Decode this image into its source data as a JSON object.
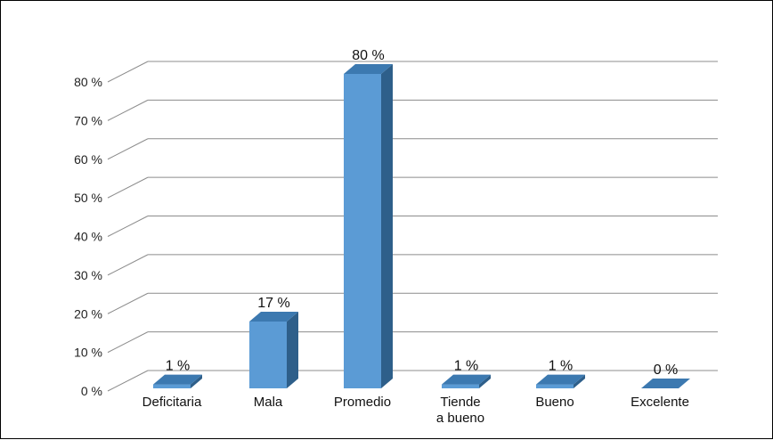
{
  "chart_data": {
    "type": "bar",
    "style": "3d-column",
    "categories": [
      [
        "Deficitaria"
      ],
      [
        "Mala"
      ],
      [
        "Promedio"
      ],
      [
        "Tiende",
        "a bueno"
      ],
      [
        "Bueno"
      ],
      [
        "Excelente"
      ]
    ],
    "values": [
      1,
      17,
      80,
      1,
      1,
      0
    ],
    "data_labels": [
      "1 %",
      "17 %",
      "80 %",
      "1 %",
      "1 %",
      "0 %"
    ],
    "y_ticks": [
      0,
      10,
      20,
      30,
      40,
      50,
      60,
      70,
      80
    ],
    "y_tick_labels": [
      "0 %",
      "10 %",
      "20 %",
      "30 %",
      "40 %",
      "50 %",
      "60 %",
      "70 %",
      "80 %"
    ],
    "ylim": [
      0,
      80
    ],
    "grid": true,
    "legend": "none",
    "colors": {
      "bar_front": "#5B9BD5",
      "bar_side": "#2E5F8A",
      "bar_top": "#3C79B0",
      "grid": "#8C8C8C"
    }
  }
}
